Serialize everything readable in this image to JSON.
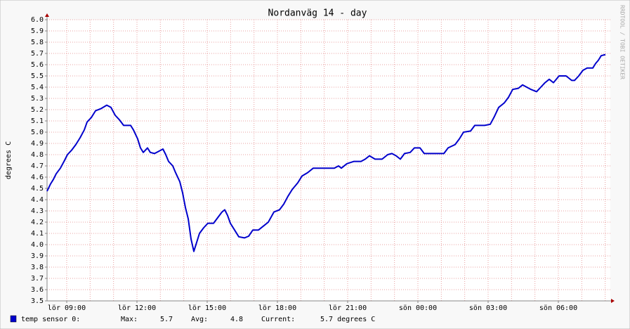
{
  "chart_data": {
    "type": "line",
    "title": "Nordanväg 14 - day",
    "ylabel": "degrees C",
    "watermark": "RRDTOOL / TOBI OETIKER",
    "x": [
      8.16,
      8.31,
      8.43,
      8.55,
      8.73,
      8.91,
      9.03,
      9.21,
      9.39,
      9.57,
      9.75,
      9.87,
      10.05,
      10.23,
      10.47,
      10.71,
      10.89,
      11.07,
      11.25,
      11.43,
      11.73,
      11.85,
      12.03,
      12.15,
      12.27,
      12.45,
      12.57,
      12.75,
      12.93,
      13.11,
      13.23,
      13.35,
      13.53,
      13.65,
      13.83,
      13.95,
      14.07,
      14.19,
      14.31,
      14.43,
      14.55,
      14.67,
      14.85,
      15.03,
      15.27,
      15.45,
      15.63,
      15.75,
      15.87,
      15.99,
      16.17,
      16.35,
      16.59,
      16.77,
      16.95,
      17.19,
      17.43,
      17.61,
      17.85,
      18.09,
      18.27,
      18.45,
      18.63,
      18.87,
      19.05,
      19.29,
      19.53,
      19.95,
      20.43,
      20.61,
      20.73,
      20.97,
      21.27,
      21.57,
      21.75,
      21.93,
      22.17,
      22.47,
      22.71,
      22.89,
      23.07,
      23.25,
      23.43,
      23.67,
      23.85,
      24.09,
      24.27,
      24.75,
      25.11,
      25.29,
      25.59,
      25.77,
      25.95,
      26.25,
      26.43,
      26.85,
      27.09,
      27.27,
      27.45,
      27.69,
      27.87,
      28.05,
      28.29,
      28.47,
      28.65,
      28.83,
      29.07,
      29.25,
      29.43,
      29.61,
      29.79,
      30.03,
      30.33,
      30.57,
      30.69,
      30.87,
      31.05,
      31.23,
      31.47,
      31.59,
      31.71,
      31.83,
      32.01
    ],
    "series": [
      {
        "name": "temp sensor 0:",
        "color": "#0000cc",
        "values": [
          4.475,
          4.54,
          4.58,
          4.63,
          4.68,
          4.75,
          4.8,
          4.84,
          4.89,
          4.95,
          5.02,
          5.09,
          5.13,
          5.19,
          5.21,
          5.24,
          5.22,
          5.15,
          5.11,
          5.06,
          5.06,
          5.02,
          4.94,
          4.86,
          4.82,
          4.86,
          4.82,
          4.81,
          4.83,
          4.85,
          4.8,
          4.74,
          4.7,
          4.64,
          4.56,
          4.46,
          4.33,
          4.23,
          4.05,
          3.94,
          4.02,
          4.1,
          4.15,
          4.19,
          4.19,
          4.24,
          4.29,
          4.31,
          4.26,
          4.19,
          4.13,
          4.07,
          4.06,
          4.075,
          4.13,
          4.13,
          4.17,
          4.2,
          4.29,
          4.31,
          4.36,
          4.43,
          4.49,
          4.55,
          4.61,
          4.64,
          4.68,
          4.68,
          4.68,
          4.7,
          4.68,
          4.72,
          4.74,
          4.74,
          4.76,
          4.79,
          4.76,
          4.76,
          4.8,
          4.81,
          4.79,
          4.76,
          4.81,
          4.82,
          4.86,
          4.86,
          4.81,
          4.81,
          4.81,
          4.86,
          4.89,
          4.94,
          5.0,
          5.01,
          5.06,
          5.06,
          5.07,
          5.14,
          5.22,
          5.26,
          5.31,
          5.38,
          5.39,
          5.42,
          5.4,
          5.38,
          5.36,
          5.4,
          5.44,
          5.47,
          5.44,
          5.5,
          5.5,
          5.46,
          5.46,
          5.5,
          5.55,
          5.57,
          5.57,
          5.61,
          5.64,
          5.68,
          5.69
        ]
      }
    ],
    "xlim": [
      8.16,
      32.22
    ],
    "xticks": [
      {
        "value": 9,
        "label": "lör 09:00"
      },
      {
        "value": 12,
        "label": "lör 12:00"
      },
      {
        "value": 15,
        "label": "lör 15:00"
      },
      {
        "value": 18,
        "label": "lör 18:00"
      },
      {
        "value": 21,
        "label": "lör 21:00"
      },
      {
        "value": 24,
        "label": "sön 00:00"
      },
      {
        "value": 27,
        "label": "sön 03:00"
      },
      {
        "value": 30,
        "label": "sön 06:00"
      }
    ],
    "x_minor_grid": [
      9,
      10,
      11,
      12,
      13,
      14,
      15,
      16,
      17,
      18,
      19,
      20,
      21,
      22,
      23,
      24,
      25,
      26,
      27,
      28,
      29,
      30,
      31,
      32
    ],
    "ylim": [
      3.5,
      6.0
    ],
    "yticks": [
      3.5,
      3.6,
      3.7,
      3.8,
      3.9,
      {
        "value": 4,
        "label": "4.0"
      },
      4.1,
      4.2,
      4.3,
      4.4,
      4.5,
      4.6,
      4.7,
      4.8,
      4.9,
      {
        "value": 5,
        "label": "5.0"
      },
      5.1,
      5.2,
      5.3,
      5.4,
      5.5,
      5.6,
      5.7,
      5.8,
      5.9,
      {
        "value": 6,
        "label": "6.0"
      }
    ],
    "grid": true,
    "stats": [
      {
        "label": "Max:",
        "value": 5.7
      },
      {
        "label": "Avg:",
        "value": 4.8
      },
      {
        "label": "Current:",
        "value": 5.7,
        "value_label": "5.7 degrees C"
      }
    ]
  }
}
